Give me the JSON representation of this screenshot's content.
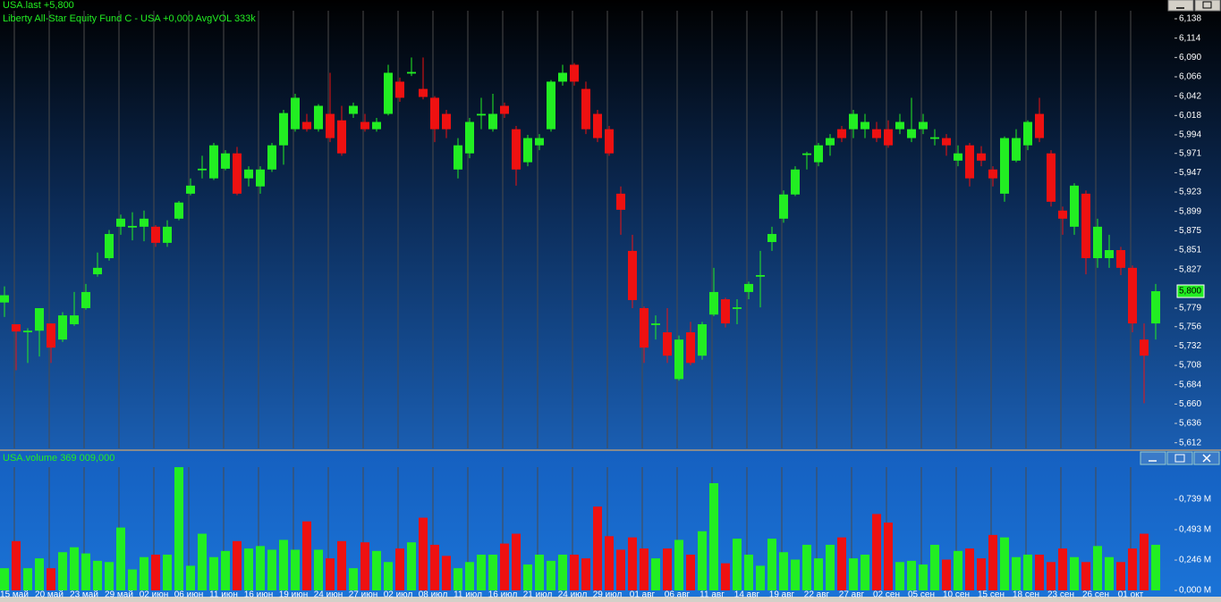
{
  "chart_data": [
    {
      "type": "candlestick",
      "title": "USA.last +5,800",
      "subtitle": "Liberty All-Star Equity Fund C - USA +0,000 AvgVOL 333k",
      "up_color": "#22ee22",
      "down_color": "#ee1111",
      "open": [
        5.786,
        5.759,
        5.749,
        5.751,
        5.76,
        5.74,
        5.759,
        5.779,
        5.821,
        5.841,
        5.88,
        5.879,
        5.88,
        5.88,
        5.86,
        5.89,
        5.921,
        5.95,
        5.94,
        5.952,
        5.971,
        5.94,
        5.93,
        5.951,
        5.981,
        6.001,
        6.01,
        6.001,
        6.02,
        6.012,
        6.02,
        6.01,
        6.001,
        6.02,
        6.06,
        6.07,
        6.051,
        6.04,
        6.02,
        5.951,
        5.971,
        6.018,
        6.001,
        6.03,
        6.001,
        5.96,
        5.981,
        6.001,
        6.06,
        6.081,
        6.051,
        6.02,
        6.001,
        5.921,
        5.85,
        5.779,
        5.758,
        5.749,
        5.691,
        5.749,
        5.72,
        5.771,
        5.79,
        5.778,
        5.799,
        5.818,
        5.861,
        5.89,
        5.92,
        5.969,
        5.96,
        5.981,
        6.001,
        6.001,
        6.001,
        6.001,
        6.001,
        6.001,
        5.99,
        6.001,
        5.989,
        5.99,
        5.962,
        5.981,
        5.971,
        5.951,
        5.921,
        5.962,
        5.981,
        6.02,
        5.971,
        5.9,
        5.88,
        5.921,
        5.841,
        5.841,
        5.851,
        5.829,
        5.74,
        5.76
      ],
      "high": [
        5.806,
        5.759,
        5.754,
        5.779,
        5.76,
        5.774,
        5.799,
        5.809,
        5.848,
        5.876,
        5.895,
        5.898,
        5.9,
        5.882,
        5.888,
        5.912,
        5.94,
        5.968,
        5.984,
        5.975,
        5.979,
        5.955,
        5.955,
        5.984,
        6.025,
        6.045,
        6.02,
        6.032,
        6.071,
        6.03,
        6.034,
        6.02,
        6.015,
        6.081,
        6.065,
        6.09,
        6.09,
        6.042,
        6.025,
        5.99,
        6.015,
        6.04,
        6.045,
        6.034,
        6.005,
        5.994,
        5.995,
        6.062,
        6.081,
        6.083,
        6.06,
        6.025,
        6.005,
        5.93,
        5.87,
        5.781,
        5.77,
        5.779,
        5.745,
        5.762,
        5.762,
        5.829,
        5.792,
        5.79,
        5.812,
        5.85,
        5.88,
        5.925,
        5.955,
        5.973,
        5.984,
        5.995,
        6.005,
        6.025,
        6.02,
        6.01,
        6.012,
        6.02,
        6.04,
        6.02,
        6.001,
        5.995,
        5.981,
        5.984,
        5.98,
        5.955,
        5.992,
        6.001,
        6.012,
        6.04,
        5.975,
        5.905,
        5.934,
        5.925,
        5.89,
        5.87,
        5.855,
        5.832,
        5.76,
        5.809
      ],
      "low": [
        5.768,
        5.702,
        5.711,
        5.719,
        5.711,
        5.737,
        5.757,
        5.777,
        5.818,
        5.838,
        5.87,
        5.863,
        5.862,
        5.855,
        5.855,
        5.888,
        5.919,
        5.94,
        5.938,
        5.95,
        5.919,
        5.93,
        5.921,
        5.948,
        5.957,
        5.998,
        5.998,
        5.998,
        5.985,
        5.968,
        6.015,
        5.998,
        5.998,
        6.018,
        6.035,
        6.067,
        6.038,
        5.985,
        5.99,
        5.94,
        5.965,
        6.001,
        5.998,
        6.015,
        5.931,
        5.955,
        5.975,
        5.998,
        6.055,
        6.055,
        5.995,
        5.985,
        5.968,
        5.87,
        5.779,
        5.711,
        5.74,
        5.711,
        5.689,
        5.708,
        5.715,
        5.769,
        5.755,
        5.759,
        5.79,
        5.78,
        5.85,
        5.885,
        5.918,
        5.951,
        5.955,
        5.968,
        5.985,
        5.99,
        5.99,
        5.985,
        5.978,
        5.995,
        5.985,
        5.995,
        5.981,
        5.968,
        5.955,
        5.93,
        5.955,
        5.93,
        5.911,
        5.96,
        5.975,
        5.985,
        5.905,
        5.87,
        5.87,
        5.821,
        5.829,
        5.829,
        5.82,
        5.749,
        5.661,
        5.74
      ],
      "close": [
        5.795,
        5.75,
        5.751,
        5.779,
        5.73,
        5.77,
        5.77,
        5.799,
        5.829,
        5.871,
        5.89,
        5.881,
        5.89,
        5.86,
        5.88,
        5.91,
        5.931,
        5.952,
        5.981,
        5.971,
        5.921,
        5.951,
        5.951,
        5.981,
        6.021,
        6.04,
        6.001,
        6.03,
        5.99,
        5.971,
        6.03,
        6.001,
        6.01,
        6.071,
        6.04,
        6.072,
        6.041,
        6.001,
        6.001,
        5.981,
        6.01,
        6.02,
        6.02,
        6.02,
        5.951,
        5.99,
        5.99,
        6.06,
        6.071,
        6.06,
        6.001,
        5.99,
        5.971,
        5.901,
        5.789,
        5.73,
        5.76,
        5.72,
        5.74,
        5.711,
        5.759,
        5.799,
        5.76,
        5.78,
        5.809,
        5.82,
        5.871,
        5.92,
        5.951,
        5.971,
        5.981,
        5.99,
        5.99,
        6.02,
        6.01,
        5.99,
        5.981,
        6.01,
        6.001,
        6.01,
        5.991,
        5.981,
        5.971,
        5.94,
        5.962,
        5.94,
        5.99,
        5.99,
        6.01,
        5.99,
        5.911,
        5.89,
        5.931,
        5.841,
        5.88,
        5.851,
        5.829,
        5.76,
        5.72,
        5.8
      ],
      "ylim": [
        5.605,
        6.148
      ],
      "yticks": [
        {
          "value": 6.138,
          "label": "6,138"
        },
        {
          "value": 6.114,
          "label": "6,114"
        },
        {
          "value": 6.09,
          "label": "6,090"
        },
        {
          "value": 6.066,
          "label": "6,066"
        },
        {
          "value": 6.042,
          "label": "6,042"
        },
        {
          "value": 6.018,
          "label": "6,018"
        },
        {
          "value": 5.994,
          "label": "5,994"
        },
        {
          "value": 5.971,
          "label": "5,971"
        },
        {
          "value": 5.947,
          "label": "5,947"
        },
        {
          "value": 5.923,
          "label": "5,923"
        },
        {
          "value": 5.899,
          "label": "5,899"
        },
        {
          "value": 5.875,
          "label": "5,875"
        },
        {
          "value": 5.851,
          "label": "5,851"
        },
        {
          "value": 5.827,
          "label": "5,827"
        },
        {
          "value": 5.779,
          "label": "5,779"
        },
        {
          "value": 5.756,
          "label": "5,756"
        },
        {
          "value": 5.732,
          "label": "5,732"
        },
        {
          "value": 5.708,
          "label": "5,708"
        },
        {
          "value": 5.684,
          "label": "5,684"
        },
        {
          "value": 5.66,
          "label": "5,660"
        },
        {
          "value": 5.636,
          "label": "5,636"
        },
        {
          "value": 5.612,
          "label": "5,612"
        }
      ],
      "last_price": {
        "value": 5.8,
        "label": "5,800"
      }
    },
    {
      "type": "bar",
      "title": "USA.volume 369 009,000",
      "categories": [
        null,
        "15 май",
        null,
        null,
        "20 май",
        null,
        null,
        "23 май",
        null,
        null,
        "29 май",
        null,
        null,
        "02 июн",
        null,
        null,
        "06 июн",
        null,
        null,
        "11 июн",
        null,
        null,
        "16 июн",
        null,
        null,
        "19 июн",
        null,
        null,
        "24 июн",
        null,
        null,
        "27 июн",
        null,
        null,
        "02 июл",
        null,
        null,
        "08 июл",
        null,
        null,
        "11 июл",
        null,
        null,
        "16 июл",
        null,
        null,
        "21 июл",
        null,
        null,
        "24 июл",
        null,
        null,
        "29 июл",
        null,
        null,
        "01 авг",
        null,
        null,
        "06 авг",
        null,
        null,
        "11 авг",
        null,
        null,
        "14 авг",
        null,
        null,
        "19 авг",
        null,
        null,
        "22 авг",
        null,
        null,
        "27 авг",
        null,
        null,
        "02 сен",
        null,
        null,
        "05 сен",
        null,
        null,
        "10 сен",
        null,
        null,
        "15 сен",
        null,
        null,
        "18 сен",
        null,
        null,
        "23 сен",
        null,
        null,
        "26 сен",
        null,
        null,
        "01 окт",
        null,
        null
      ],
      "values": [
        0.18,
        0.4,
        0.18,
        0.26,
        0.18,
        0.31,
        0.35,
        0.3,
        0.24,
        0.23,
        0.51,
        0.17,
        0.27,
        0.29,
        0.29,
        1.0,
        0.2,
        0.46,
        0.27,
        0.32,
        0.4,
        0.34,
        0.36,
        0.33,
        0.41,
        0.33,
        0.56,
        0.33,
        0.26,
        0.4,
        0.18,
        0.39,
        0.32,
        0.23,
        0.34,
        0.39,
        0.59,
        0.37,
        0.28,
        0.18,
        0.23,
        0.29,
        0.29,
        0.38,
        0.46,
        0.21,
        0.29,
        0.24,
        0.29,
        0.29,
        0.26,
        0.68,
        0.44,
        0.33,
        0.43,
        0.34,
        0.26,
        0.34,
        0.41,
        0.29,
        0.48,
        0.87,
        0.22,
        0.42,
        0.29,
        0.2,
        0.42,
        0.31,
        0.25,
        0.37,
        0.26,
        0.37,
        0.43,
        0.26,
        0.29,
        0.62,
        0.55,
        0.23,
        0.24,
        0.21,
        0.37,
        0.25,
        0.32,
        0.34,
        0.26,
        0.45,
        0.43,
        0.27,
        0.29,
        0.29,
        0.23,
        0.34,
        0.27,
        0.23,
        0.36,
        0.27,
        0.23,
        0.34,
        0.46,
        0.37
      ],
      "ylim": [
        0,
        1.022
      ],
      "yticks": [
        {
          "value": 0.739,
          "label": "0,739 M"
        },
        {
          "value": 0.493,
          "label": "0,493 M"
        },
        {
          "value": 0.246,
          "label": "0,246 M"
        },
        {
          "value": 0,
          "label": "0,000 M"
        }
      ]
    }
  ]
}
